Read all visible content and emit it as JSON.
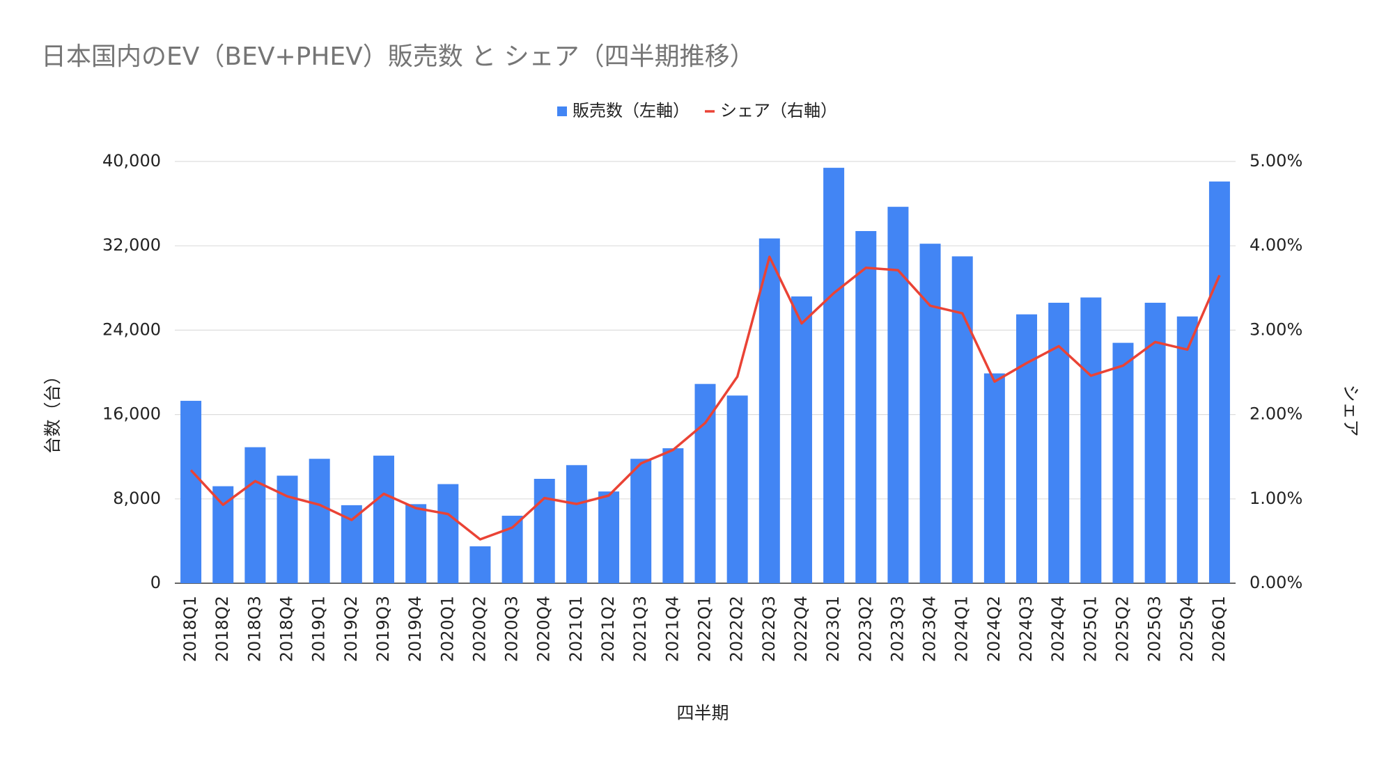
{
  "chart_data": {
    "type": "bar",
    "title": "日本国内のEV（BEV+PHEV）販売数 と シェア（四半期推移）",
    "x_label": "四半期",
    "y_label": "台数（台）",
    "y2_label": "シェア",
    "legend": "top",
    "grid": true,
    "categories": [
      "2018Q1",
      "2018Q2",
      "2018Q3",
      "2018Q4",
      "2019Q1",
      "2019Q2",
      "2019Q3",
      "2019Q4",
      "2020Q1",
      "2020Q2",
      "2020Q3",
      "2020Q4",
      "2021Q1",
      "2021Q2",
      "2021Q3",
      "2021Q4",
      "2022Q1",
      "2022Q2",
      "2022Q3",
      "2022Q4",
      "2023Q1",
      "2023Q2",
      "2023Q3",
      "2023Q4",
      "2024Q1",
      "2024Q2",
      "2024Q3",
      "2024Q4",
      "2025Q1",
      "2025Q2",
      "2025Q3",
      "2025Q4",
      "2026Q1"
    ],
    "series": [
      {
        "name": "販売数（左軸）",
        "type": "bar",
        "color": "#4285f4",
        "values": [
          17300,
          9200,
          12900,
          10200,
          11800,
          7400,
          12100,
          7500,
          9400,
          3500,
          6400,
          9900,
          11200,
          8700,
          11800,
          12800,
          18900,
          17800,
          32700,
          27200,
          39400,
          33400,
          35700,
          32200,
          31000,
          19900,
          25500,
          26600,
          27100,
          22800,
          26600,
          25300,
          38100
        ]
      },
      {
        "name": "シェア（右軸）",
        "type": "line",
        "axis": "y2",
        "color": "#ea4335",
        "values": [
          1.34,
          0.93,
          1.21,
          1.03,
          0.93,
          0.75,
          1.06,
          0.89,
          0.82,
          0.52,
          0.66,
          1.01,
          0.94,
          1.04,
          1.42,
          1.58,
          1.9,
          2.45,
          3.87,
          3.08,
          3.44,
          3.74,
          3.71,
          3.29,
          3.2,
          2.39,
          2.61,
          2.81,
          2.46,
          2.58,
          2.86,
          2.77,
          3.65
        ]
      }
    ],
    "ylim": [
      0,
      40000
    ],
    "yticks": [
      0,
      {
        "value": 8000,
        "label": "8,000"
      },
      {
        "value": 16000,
        "label": "16,000"
      },
      {
        "value": 24000,
        "label": "24,000"
      },
      {
        "value": 32000,
        "label": "32,000"
      },
      {
        "value": 40000,
        "label": "40,000"
      }
    ],
    "y2lim": [
      0,
      5
    ],
    "y2ticks": [
      {
        "value": 0,
        "label": "0.00%"
      },
      {
        "value": 1,
        "label": "1.00%"
      },
      {
        "value": 2,
        "label": "2.00%"
      },
      {
        "value": 3,
        "label": "3.00%"
      },
      {
        "value": 4,
        "label": "4.00%"
      },
      {
        "value": 5,
        "label": "5.00%"
      }
    ]
  }
}
